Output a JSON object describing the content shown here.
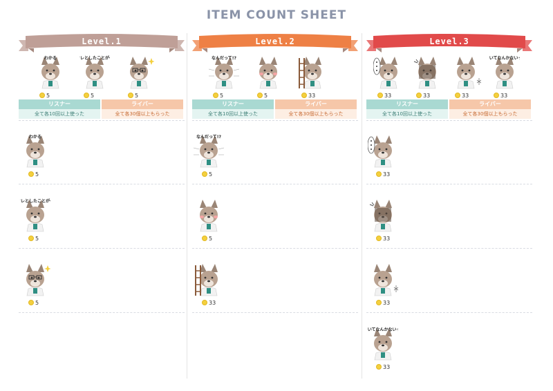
{
  "title": "ITEM COUNT SHEET",
  "colors": {
    "level1": "#bf9f97",
    "level2": "#ee8045",
    "level3": "#e14a4a",
    "listener": "#a9d9d2",
    "liver": "#f6c7a9",
    "coin": "#f4d03f"
  },
  "categories": {
    "listener_label": "リスナー",
    "listener_desc": "全て各10回以上使った",
    "liver_label": "ライバー",
    "liver_desc": "全て各30個以上もらった"
  },
  "levels": [
    {
      "label": "Level.1",
      "banner": [
        {
          "icon": "wakaru-sticker",
          "caption": "わかる",
          "coins": "5"
        },
        {
          "icon": "oreto-shita-sticker",
          "caption": "オレとしたことが〜",
          "coins": "5"
        },
        {
          "icon": "glasses-sparkle-sticker",
          "caption": "",
          "coins": "5"
        }
      ],
      "items": [
        {
          "icon": "wakaru-sticker",
          "caption": "わかる",
          "coins": "5"
        },
        {
          "icon": "oreto-shita-sticker",
          "caption": "オレとしたことが〜",
          "coins": "5"
        },
        {
          "icon": "glasses-sparkle-sticker",
          "caption": "",
          "coins": "5"
        }
      ]
    },
    {
      "label": "Level.2",
      "banner": [
        {
          "icon": "nandatte-sticker",
          "caption": "なんだって!?",
          "coins": "5"
        },
        {
          "icon": "blushing-sticker",
          "caption": "",
          "coins": "5"
        },
        {
          "icon": "ladder-sticker",
          "caption": "",
          "coins": "33"
        }
      ],
      "items": [
        {
          "icon": "nandatte-sticker",
          "caption": "なんだって!?",
          "coins": "5"
        },
        {
          "icon": "blushing-sticker",
          "caption": "",
          "coins": "5"
        },
        {
          "icon": "ladder-sticker",
          "caption": "",
          "coins": "33"
        }
      ]
    },
    {
      "label": "Level.3",
      "banner": [
        {
          "icon": "ellipsis-sticker",
          "caption": "",
          "coins": "33"
        },
        {
          "icon": "angry-sticker",
          "caption": "",
          "coins": "33"
        },
        {
          "icon": "sigh-sticker",
          "caption": "",
          "coins": "33"
        },
        {
          "icon": "nakanai-sticker",
          "caption": "泣いてなんかないっ!",
          "coins": "33"
        }
      ],
      "items": [
        {
          "icon": "ellipsis-sticker",
          "caption": "",
          "coins": "33"
        },
        {
          "icon": "angry-sticker",
          "caption": "",
          "coins": "33"
        },
        {
          "icon": "sigh-sticker",
          "caption": "",
          "coins": "33"
        },
        {
          "icon": "nakanai-sticker",
          "caption": "泣いてなんかないっ!",
          "coins": "33"
        }
      ]
    }
  ]
}
